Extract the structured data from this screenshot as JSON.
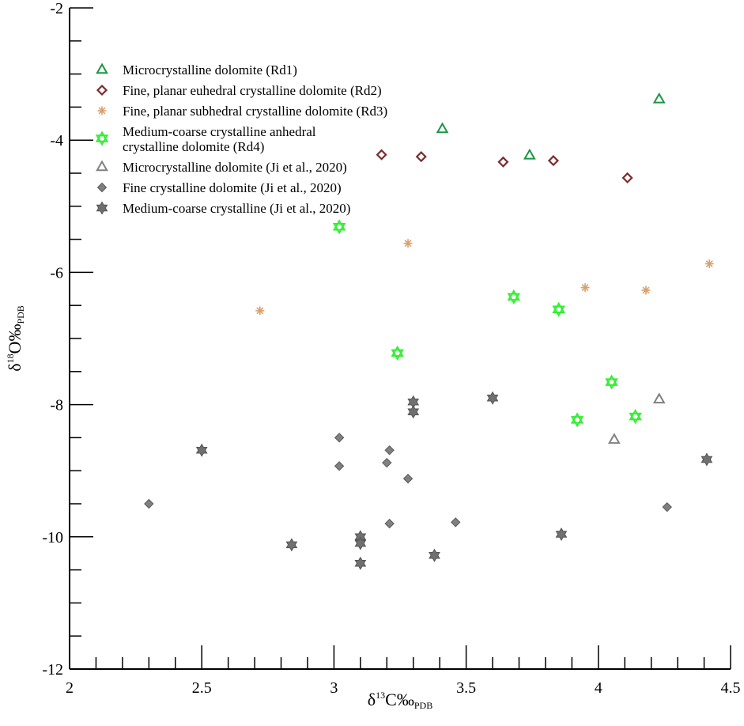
{
  "chart_data": {
    "type": "scatter",
    "xlabel": {
      "prefix": "δ",
      "sup": "13",
      "main": "C‰",
      "sub": "PDB"
    },
    "ylabel": {
      "prefix": "δ",
      "sup": "18",
      "main": "O‰",
      "sub": "PDB"
    },
    "xlim": [
      2,
      4.5
    ],
    "ylim": [
      -12,
      -2
    ],
    "x_ticks": [
      2,
      2.5,
      3,
      3.5,
      4,
      4.5
    ],
    "y_ticks": [
      -12,
      -10,
      -8,
      -6,
      -4,
      -2
    ],
    "x_tick_labels": [
      "2",
      "2.5",
      "3",
      "3.5",
      "4",
      "4.5"
    ],
    "y_tick_labels": [
      "-12",
      "-10",
      "-8",
      "-6",
      "-4",
      "-2"
    ],
    "grid": false,
    "legend_position": "top-left",
    "series": [
      {
        "name": "Microcrystalline dolomite (Rd1)",
        "marker": "triangle-open",
        "color": "#1a9641",
        "points": [
          [
            3.41,
            -3.83
          ],
          [
            3.74,
            -4.23
          ],
          [
            4.23,
            -3.38
          ]
        ]
      },
      {
        "name": "Fine, planar euhedral crystalline dolomite (Rd2)",
        "marker": "diamond-open",
        "color": "#7a2b2b",
        "points": [
          [
            3.18,
            -4.22
          ],
          [
            3.33,
            -4.25
          ],
          [
            3.64,
            -4.33
          ],
          [
            3.83,
            -4.31
          ],
          [
            4.11,
            -4.57
          ]
        ]
      },
      {
        "name": "Fine, planar subhedral crystalline dolomite (Rd3)",
        "marker": "asterisk",
        "color": "#d9a06b",
        "points": [
          [
            2.72,
            -6.58
          ],
          [
            3.28,
            -5.56
          ],
          [
            3.95,
            -6.23
          ],
          [
            4.18,
            -6.27
          ],
          [
            4.42,
            -5.87
          ]
        ]
      },
      {
        "name": "Medium-coarse crystalline anhedral crystalline dolomite (Rd4)",
        "legend_lines": [
          "Medium-coarse crystalline anhedral",
          "crystalline dolomite (Rd4)"
        ],
        "marker": "hexagram-open",
        "color": "#33ee33",
        "points": [
          [
            3.02,
            -5.31
          ],
          [
            3.24,
            -7.22
          ],
          [
            3.68,
            -6.37
          ],
          [
            3.85,
            -6.56
          ],
          [
            4.05,
            -7.66
          ],
          [
            3.92,
            -8.23
          ],
          [
            4.14,
            -8.18
          ]
        ]
      },
      {
        "name": "Microcrystalline dolomite (Ji et al., 2020)",
        "marker": "triangle-open",
        "color": "#808080",
        "points": [
          [
            4.23,
            -7.92
          ],
          [
            4.06,
            -8.53
          ]
        ]
      },
      {
        "name": "Fine crystalline dolomite (Ji et al., 2020)",
        "marker": "diamond-filled",
        "color": "#808080",
        "points": [
          [
            2.3,
            -9.5
          ],
          [
            3.02,
            -8.5
          ],
          [
            3.02,
            -8.93
          ],
          [
            3.2,
            -8.88
          ],
          [
            3.21,
            -8.69
          ],
          [
            3.28,
            -9.12
          ],
          [
            3.21,
            -9.8
          ],
          [
            3.46,
            -9.78
          ],
          [
            4.26,
            -9.55
          ]
        ]
      },
      {
        "name": "Medium-coarse crystalline  (Ji et al., 2020)",
        "marker": "hexagram-filled",
        "color": "#707070",
        "points": [
          [
            2.5,
            -8.69
          ],
          [
            2.84,
            -10.12
          ],
          [
            3.1,
            -10.0
          ],
          [
            3.1,
            -10.1
          ],
          [
            3.1,
            -10.4
          ],
          [
            3.3,
            -7.96
          ],
          [
            3.3,
            -8.11
          ],
          [
            3.38,
            -10.28
          ],
          [
            3.6,
            -7.9
          ],
          [
            3.86,
            -9.96
          ],
          [
            4.41,
            -8.83
          ]
        ]
      }
    ]
  }
}
